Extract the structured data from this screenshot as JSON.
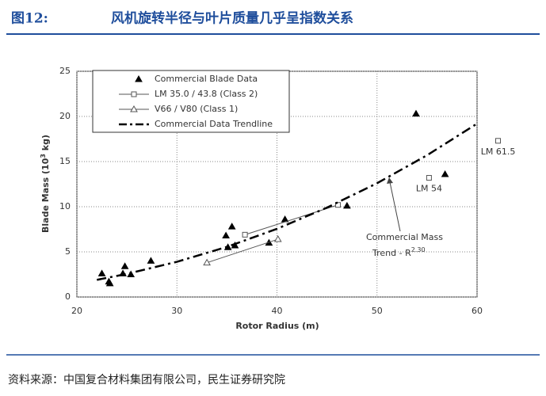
{
  "header": {
    "label": "图12:",
    "title": "风机旋转半径与叶片质量几乎呈指数关系"
  },
  "chart_data": {
    "type": "scatter",
    "xlabel": "Rotor Radius (m)",
    "ylabel": [
      "Blade Mass (10",
      "3",
      " kg)"
    ],
    "xlim": [
      20,
      60
    ],
    "xticks": [
      20,
      30,
      40,
      50,
      60
    ],
    "ylim": [
      0,
      25
    ],
    "yticks": [
      0,
      5,
      10,
      15,
      20,
      25
    ],
    "grid": true,
    "series": [
      {
        "name": "Commercial Blade Data",
        "marker": "triangle-filled",
        "color": "#000000",
        "x": [
          22.5,
          23.3,
          23.2,
          24.8,
          24.6,
          25.4,
          27.4,
          34.9,
          35.5,
          35.1,
          35.8,
          39.2,
          40.8,
          47.0,
          53.9,
          56.8
        ],
        "values": [
          2.6,
          1.5,
          1.7,
          3.4,
          2.6,
          2.5,
          4.0,
          6.8,
          7.8,
          5.5,
          5.7,
          6.0,
          8.6,
          10.1,
          20.3,
          13.6
        ]
      },
      {
        "name": "LM 35.0 / 43.8 (Class 2)",
        "marker": "square-open",
        "color": "#555555",
        "x": [
          36.8,
          46.1
        ],
        "values": [
          6.9,
          10.2
        ]
      },
      {
        "name": "V66 / V80 (Class 1)",
        "marker": "triangle-open",
        "color": "#555555",
        "x": [
          33.0,
          40.1
        ],
        "values": [
          3.8,
          6.4
        ]
      },
      {
        "name": "Commercial Data Trendline",
        "marker": "dashdot",
        "color": "#000000",
        "x": [
          22,
          25,
          30,
          35,
          40,
          45,
          50,
          55,
          60
        ],
        "values": [
          1.9,
          2.56,
          3.9,
          5.55,
          7.55,
          9.9,
          12.6,
          15.7,
          19.2
        ]
      }
    ],
    "annotations": [
      {
        "text": "LM 54",
        "x": 55.2,
        "y": 13.2
      },
      {
        "text": "LM 61.5",
        "x": 62.1,
        "y": 17.3
      }
    ],
    "trend_label": [
      "Commercial Mass",
      "Trend - R",
      "2.30"
    ]
  },
  "source": "资料来源：中国复合材料集团有限公司，民生证券研究院"
}
